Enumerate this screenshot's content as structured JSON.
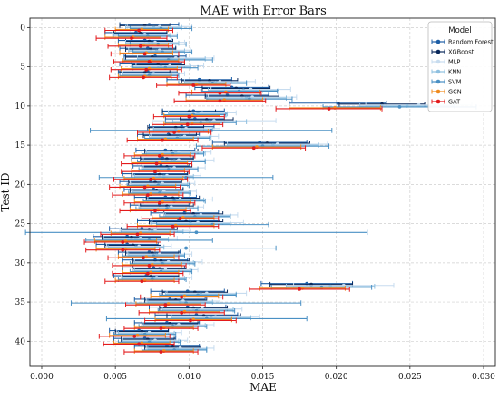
{
  "chart_data": {
    "type": "scatter",
    "orientation": "horizontal",
    "title": "MAE with Error Bars",
    "xlabel": "MAE",
    "ylabel": "Test ID",
    "xlim": [
      -0.0008,
      0.0308
    ],
    "ylim": [
      43.2,
      -1.2
    ],
    "x_ticks": [
      0.0,
      0.005,
      0.01,
      0.015,
      0.02,
      0.025,
      0.03
    ],
    "x_tick_labels": [
      "0.000",
      "0.005",
      "0.010",
      "0.015",
      "0.020",
      "0.025",
      "0.030"
    ],
    "y_ticks": [
      0,
      5,
      10,
      15,
      20,
      25,
      30,
      35,
      40
    ],
    "y_tick_labels": [
      "0",
      "5",
      "10",
      "15",
      "20",
      "25",
      "30",
      "35",
      "40"
    ],
    "grid": true,
    "legend": {
      "title": "Model",
      "position": "top-right"
    },
    "series": [
      {
        "name": "Random Forest",
        "color": "#1f5fa6",
        "values": [
          0.0073,
          0.0064,
          0.007,
          0.0072,
          0.0077,
          0.0074,
          0.0072,
          0.0107,
          0.0129,
          0.0126,
          0.0201,
          0.0103,
          0.0104,
          0.0095,
          0.0086,
          0.0148,
          0.0084,
          0.0082,
          0.0081,
          0.0077,
          0.0074,
          0.0076,
          0.0084,
          0.008,
          0.0097,
          0.0093,
          0.0068,
          0.0058,
          0.0058,
          0.0073,
          0.0077,
          0.0076,
          0.0071,
          0.018,
          0.0099,
          0.0087,
          0.0099,
          0.0105,
          0.0085,
          0.0066,
          0.007,
          0.0085
        ],
        "err": [
          0.002,
          0.0021,
          0.0018,
          0.0019,
          0.0021,
          0.0021,
          0.002,
          0.0022,
          0.0025,
          0.0028,
          0.0033,
          0.0021,
          0.002,
          0.0022,
          0.0021,
          0.0032,
          0.002,
          0.0021,
          0.0019,
          0.0022,
          0.0021,
          0.002,
          0.0021,
          0.002,
          0.0023,
          0.0028,
          0.0022,
          0.0023,
          0.0021,
          0.0021,
          0.0022,
          0.0021,
          0.0022,
          0.0031,
          0.0025,
          0.0024,
          0.0026,
          0.0028,
          0.0022,
          0.002,
          0.0021,
          0.0022
        ]
      },
      {
        "name": "XGBoost",
        "color": "#0b2a5c",
        "values": [
          0.007,
          0.0067,
          0.0073,
          0.0074,
          0.0075,
          0.0079,
          0.007,
          0.0114,
          0.0132,
          0.0136,
          0.0231,
          0.01,
          0.0112,
          0.0091,
          0.0087,
          0.0153,
          0.0088,
          0.0085,
          0.0085,
          0.008,
          0.0077,
          0.0078,
          0.0089,
          0.0085,
          0.0103,
          0.0098,
          0.0073,
          0.0061,
          0.0062,
          0.0075,
          0.0081,
          0.008,
          0.0074,
          0.0183,
          0.0104,
          0.0091,
          0.0103,
          0.011,
          0.0087,
          0.0068,
          0.0072,
          0.0089
        ],
        "err": [
          0.0017,
          0.0018,
          0.0016,
          0.0017,
          0.0018,
          0.0018,
          0.0017,
          0.0019,
          0.0023,
          0.0025,
          0.0029,
          0.0018,
          0.0018,
          0.0019,
          0.0018,
          0.0029,
          0.0018,
          0.0018,
          0.0017,
          0.0019,
          0.0018,
          0.0018,
          0.0018,
          0.0018,
          0.002,
          0.0025,
          0.0019,
          0.002,
          0.0019,
          0.0018,
          0.0019,
          0.0018,
          0.0019,
          0.0028,
          0.0022,
          0.0021,
          0.0023,
          0.0025,
          0.0019,
          0.0018,
          0.0018,
          0.0019
        ]
      },
      {
        "name": "MLP",
        "color": "#c7dcef",
        "values": [
          0.008,
          0.007,
          0.0077,
          0.008,
          0.0091,
          0.0087,
          0.0076,
          0.0121,
          0.0142,
          0.0143,
          0.0256,
          0.0109,
          0.0117,
          0.0098,
          0.0097,
          0.016,
          0.0093,
          0.0093,
          0.009,
          0.0085,
          0.0082,
          0.0083,
          0.0094,
          0.0088,
          0.0108,
          0.0106,
          0.0077,
          0.0067,
          0.0066,
          0.008,
          0.0086,
          0.0084,
          0.0078,
          0.0205,
          0.0112,
          0.0096,
          0.0109,
          0.0118,
          0.0093,
          0.0073,
          0.0077,
          0.0094
        ],
        "err": [
          0.0022,
          0.0022,
          0.002,
          0.0021,
          0.0026,
          0.0023,
          0.0021,
          0.0024,
          0.0027,
          0.003,
          0.0036,
          0.0023,
          0.0042,
          0.0023,
          0.0023,
          0.0034,
          0.0022,
          0.0024,
          0.0021,
          0.0023,
          0.0022,
          0.0022,
          0.0022,
          0.0022,
          0.0025,
          0.0031,
          0.0024,
          0.0025,
          0.0022,
          0.0022,
          0.0023,
          0.0022,
          0.0024,
          0.0034,
          0.0027,
          0.0025,
          0.0027,
          0.003,
          0.0024,
          0.0022,
          0.0022,
          0.0023
        ]
      },
      {
        "name": "KNN",
        "color": "#8fc0e0",
        "values": [
          0.0076,
          0.0068,
          0.0075,
          0.0078,
          0.0088,
          0.0081,
          0.0074,
          0.0118,
          0.0137,
          0.0139,
          0.0248,
          0.0106,
          0.0114,
          0.0096,
          0.0094,
          0.0157,
          0.0091,
          0.009,
          0.0087,
          0.0083,
          0.008,
          0.0081,
          0.0091,
          0.0086,
          0.0106,
          0.0101,
          0.0075,
          0.0064,
          0.0064,
          0.0078,
          0.0083,
          0.0082,
          0.0076,
          0.0196,
          0.0108,
          0.0094,
          0.0106,
          0.0115,
          0.009,
          0.0071,
          0.0074,
          0.0092
        ],
        "err": [
          0.0019,
          0.0019,
          0.0018,
          0.0019,
          0.0023,
          0.002,
          0.0019,
          0.0021,
          0.0024,
          0.0027,
          0.0032,
          0.002,
          0.0025,
          0.002,
          0.0021,
          0.0031,
          0.002,
          0.0021,
          0.0019,
          0.002,
          0.0019,
          0.0019,
          0.0019,
          0.002,
          0.0022,
          0.0027,
          0.0021,
          0.0022,
          0.0019,
          0.0019,
          0.002,
          0.0019,
          0.0021,
          0.003,
          0.0024,
          0.0022,
          0.0024,
          0.0027,
          0.0021,
          0.0019,
          0.0019,
          0.002
        ]
      },
      {
        "name": "SVM",
        "color": "#4a90c4",
        "values": [
          0.0081,
          0.0072,
          0.0079,
          0.0082,
          0.0086,
          0.0084,
          0.0073,
          0.0116,
          0.0134,
          0.0141,
          0.0243,
          0.0103,
          0.0108,
          0.0115,
          0.0092,
          0.015,
          0.0089,
          0.0088,
          0.0086,
          0.0098,
          0.0079,
          0.008,
          0.009,
          0.0085,
          0.0104,
          0.0116,
          0.0105,
          0.0073,
          0.0098,
          0.0076,
          0.0082,
          0.0081,
          0.0075,
          0.019,
          0.0106,
          0.0098,
          0.0105,
          0.0112,
          0.0089,
          0.007,
          0.0073,
          0.009
        ],
        "err": [
          0.0021,
          0.002,
          0.0019,
          0.002,
          0.003,
          0.0022,
          0.002,
          0.0023,
          0.0026,
          0.0029,
          0.0052,
          0.0022,
          0.0024,
          0.0082,
          0.0022,
          0.0045,
          0.0021,
          0.0023,
          0.002,
          0.0059,
          0.0021,
          0.0021,
          0.0021,
          0.0021,
          0.0024,
          0.0038,
          0.0116,
          0.0043,
          0.0061,
          0.0021,
          0.0022,
          0.0021,
          0.0023,
          0.0034,
          0.0026,
          0.0078,
          0.0026,
          0.0068,
          0.0023,
          0.0021,
          0.0021,
          0.0022
        ]
      },
      {
        "name": "GCN",
        "color": "#f08a1e",
        "values": [
          0.0068,
          0.0062,
          0.0069,
          0.0071,
          0.0074,
          0.0073,
          0.007,
          0.0105,
          0.0125,
          0.0124,
          0.0199,
          0.0102,
          0.0102,
          0.0093,
          0.0084,
          0.0146,
          0.0082,
          0.008,
          0.0079,
          0.0076,
          0.0072,
          0.0074,
          0.0082,
          0.0079,
          0.0096,
          0.0091,
          0.0067,
          0.0057,
          0.0057,
          0.0071,
          0.0075,
          0.0074,
          0.007,
          0.0177,
          0.0097,
          0.0086,
          0.0097,
          0.0103,
          0.0083,
          0.0065,
          0.0068,
          0.0083
        ],
        "err": [
          0.0018,
          0.0019,
          0.0017,
          0.0018,
          0.0019,
          0.0019,
          0.0018,
          0.002,
          0.0023,
          0.0026,
          0.0031,
          0.0019,
          0.0019,
          0.002,
          0.0019,
          0.003,
          0.0019,
          0.0019,
          0.0018,
          0.002,
          0.0019,
          0.0019,
          0.0019,
          0.0019,
          0.0021,
          0.0026,
          0.002,
          0.0021,
          0.002,
          0.0019,
          0.002,
          0.0019,
          0.002,
          0.0029,
          0.0023,
          0.0022,
          0.0024,
          0.0026,
          0.002,
          0.0019,
          0.0019,
          0.002
        ]
      },
      {
        "name": "GAT",
        "color": "#e31a1c",
        "values": [
          0.0066,
          0.0061,
          0.0067,
          0.007,
          0.0073,
          0.0071,
          0.0069,
          0.0103,
          0.0121,
          0.0121,
          0.0195,
          0.01,
          0.0099,
          0.009,
          0.0082,
          0.0144,
          0.008,
          0.0078,
          0.0077,
          0.0074,
          0.007,
          0.0072,
          0.008,
          0.0077,
          0.0094,
          0.0089,
          0.0065,
          0.0055,
          0.0055,
          0.0069,
          0.0073,
          0.0072,
          0.0068,
          0.0175,
          0.0095,
          0.0084,
          0.0095,
          0.0101,
          0.0081,
          0.0063,
          0.0066,
          0.0081
        ],
        "err": [
          0.0023,
          0.0024,
          0.0022,
          0.0023,
          0.0024,
          0.0024,
          0.0023,
          0.0025,
          0.0028,
          0.0031,
          0.0036,
          0.0024,
          0.0024,
          0.0025,
          0.0024,
          0.0035,
          0.0024,
          0.0024,
          0.0023,
          0.0025,
          0.0024,
          0.0024,
          0.0024,
          0.0024,
          0.0026,
          0.0031,
          0.0025,
          0.0026,
          0.0025,
          0.0024,
          0.0025,
          0.0024,
          0.0025,
          0.0034,
          0.0028,
          0.0027,
          0.0029,
          0.0031,
          0.0025,
          0.0024,
          0.0024,
          0.0025
        ]
      }
    ]
  }
}
